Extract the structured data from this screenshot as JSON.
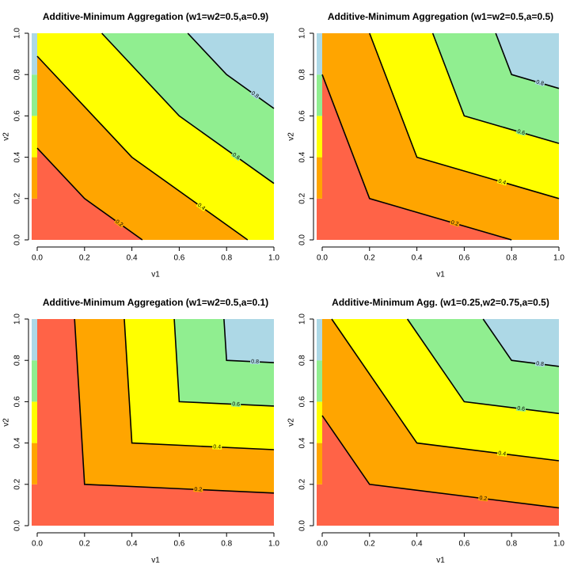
{
  "chart_data": [
    {
      "type": "contour",
      "title": "Additive-Minimum Aggregation (w1=w2=0.5,a=0.9)",
      "x_label": "v1",
      "y_label": "v2",
      "xlim": [
        0,
        1
      ],
      "ylim": [
        0,
        1
      ],
      "xticks": [
        {
          "value": 0,
          "label": "0.0"
        },
        0.2,
        0.4,
        0.6,
        0.8,
        {
          "value": 1,
          "label": "1.0"
        }
      ],
      "yticks": [
        {
          "value": 0,
          "label": "0.0"
        },
        0.2,
        0.4,
        0.6,
        0.8,
        {
          "value": 1,
          "label": "1.0"
        }
      ],
      "colors": [
        "#ff6347",
        "#ffa500",
        "#ffff00",
        "#90ee90",
        "#add8e6"
      ],
      "contours": [
        {
          "level": 0.2,
          "x": [
            0,
            0.2,
            0.444
          ],
          "y": [
            0.444,
            0.2,
            0
          ]
        },
        {
          "level": 0.4,
          "x": [
            0,
            0.4,
            0.889
          ],
          "y": [
            0.889,
            0.4,
            0
          ]
        },
        {
          "level": 0.6,
          "x": [
            0.273,
            0.6,
            1
          ],
          "y": [
            1,
            0.6,
            0.273
          ]
        },
        {
          "level": 0.8,
          "x": [
            0.636,
            0.8,
            1
          ],
          "y": [
            1,
            0.8,
            0.636
          ]
        }
      ]
    },
    {
      "type": "contour",
      "title": "Additive-Minimum Aggregation (w1=w2=0.5,a=0.5)",
      "x_label": "v1",
      "y_label": "v2",
      "xlim": [
        0,
        1
      ],
      "ylim": [
        0,
        1
      ],
      "xticks": [
        {
          "value": 0,
          "label": "0.0"
        },
        0.2,
        0.4,
        0.6,
        0.8,
        {
          "value": 1,
          "label": "1.0"
        }
      ],
      "yticks": [
        {
          "value": 0,
          "label": "0.0"
        },
        0.2,
        0.4,
        0.6,
        0.8,
        {
          "value": 1,
          "label": "1.0"
        }
      ],
      "colors": [
        "#ff6347",
        "#ffa500",
        "#ffff00",
        "#90ee90",
        "#add8e6"
      ],
      "contours": [
        {
          "level": 0.2,
          "x": [
            0,
            0.2,
            0.8
          ],
          "y": [
            0.8,
            0.2,
            0
          ]
        },
        {
          "level": 0.4,
          "x": [
            0.2,
            0.4,
            1
          ],
          "y": [
            1,
            0.4,
            0.2
          ]
        },
        {
          "level": 0.6,
          "x": [
            0.467,
            0.6,
            1
          ],
          "y": [
            1,
            0.6,
            0.467
          ]
        },
        {
          "level": 0.8,
          "x": [
            0.733,
            0.8,
            1
          ],
          "y": [
            1,
            0.8,
            0.733
          ]
        }
      ]
    },
    {
      "type": "contour",
      "title": "Additive-Minimum Aggregation (w1=w2=0.5,a=0.1)",
      "x_label": "v1",
      "y_label": "v2",
      "xlim": [
        0,
        1
      ],
      "ylim": [
        0,
        1
      ],
      "xticks": [
        {
          "value": 0,
          "label": "0.0"
        },
        0.2,
        0.4,
        0.6,
        0.8,
        {
          "value": 1,
          "label": "1.0"
        }
      ],
      "yticks": [
        {
          "value": 0,
          "label": "0.0"
        },
        0.2,
        0.4,
        0.6,
        0.8,
        {
          "value": 1,
          "label": "1.0"
        }
      ],
      "colors": [
        "#ff6347",
        "#ffa500",
        "#ffff00",
        "#90ee90",
        "#add8e6"
      ],
      "contours": [
        {
          "level": 0.2,
          "x": [
            0.158,
            0.2,
            1
          ],
          "y": [
            1,
            0.2,
            0.158
          ]
        },
        {
          "level": 0.4,
          "x": [
            0.368,
            0.4,
            1
          ],
          "y": [
            1,
            0.4,
            0.368
          ]
        },
        {
          "level": 0.6,
          "x": [
            0.579,
            0.6,
            1
          ],
          "y": [
            1,
            0.6,
            0.579
          ]
        },
        {
          "level": 0.8,
          "x": [
            0.789,
            0.8,
            1
          ],
          "y": [
            1,
            0.8,
            0.789
          ]
        }
      ]
    },
    {
      "type": "contour",
      "title": "Additive-Minimum Agg. (w1=0.25,w2=0.75,a=0.5)",
      "x_label": "v1",
      "y_label": "v2",
      "xlim": [
        0,
        1
      ],
      "ylim": [
        0,
        1
      ],
      "xticks": [
        {
          "value": 0,
          "label": "0.0"
        },
        0.2,
        0.4,
        0.6,
        0.8,
        {
          "value": 1,
          "label": "1.0"
        }
      ],
      "yticks": [
        {
          "value": 0,
          "label": "0.0"
        },
        0.2,
        0.4,
        0.6,
        0.8,
        {
          "value": 1,
          "label": "1.0"
        }
      ],
      "colors": [
        "#ff6347",
        "#ffa500",
        "#ffff00",
        "#90ee90",
        "#add8e6"
      ],
      "contours": [
        {
          "level": 0.2,
          "x": [
            0,
            0.2,
            1
          ],
          "y": [
            0.533,
            0.2,
            0.086
          ]
        },
        {
          "level": 0.4,
          "x": [
            0.04,
            0.4,
            1
          ],
          "y": [
            1,
            0.4,
            0.314
          ]
        },
        {
          "level": 0.6,
          "x": [
            0.36,
            0.6,
            1
          ],
          "y": [
            1,
            0.6,
            0.543
          ]
        },
        {
          "level": 0.8,
          "x": [
            0.68,
            0.8,
            1
          ],
          "y": [
            1,
            0.8,
            0.771
          ]
        }
      ]
    }
  ]
}
